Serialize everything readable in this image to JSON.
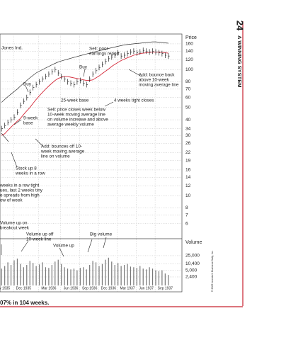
{
  "chart_data": {
    "type": "stock",
    "categories": [
      null,
      "y 1935",
      null,
      null,
      null,
      null,
      null,
      "Dec 1935",
      null,
      null,
      null,
      null,
      null,
      null,
      null,
      "Mar 1936",
      null,
      null,
      null,
      null,
      null,
      null,
      "Jun 1936",
      null,
      null,
      null,
      null,
      null,
      "Sep 1936",
      null,
      null,
      null,
      null,
      null,
      "Dec 1936",
      null,
      null,
      null,
      null,
      null,
      "Mar 1937",
      null,
      null,
      null,
      null,
      null,
      "Jun 1937",
      null,
      null,
      null,
      null,
      null,
      "Sep 1937",
      null
    ],
    "series": [
      {
        "color": "#222222",
        "values": [
          34,
          36,
          38,
          40,
          42,
          46,
          52,
          56,
          60,
          66,
          72,
          76,
          80,
          84,
          88,
          92,
          96,
          100,
          94,
          88,
          84,
          80,
          78,
          76,
          80,
          82,
          78,
          76,
          84,
          92,
          98,
          104,
          110,
          116,
          122,
          126,
          130,
          136,
          128,
          130,
          134,
          138,
          140,
          136,
          138,
          142,
          140,
          138,
          140,
          138,
          136,
          134,
          130,
          128
        ]
      },
      {
        "color": "#d42a3a",
        "values": [
          30,
          31,
          33,
          35,
          37,
          39,
          41,
          44,
          47,
          50,
          54,
          58,
          62,
          66,
          70,
          74,
          78,
          82,
          85,
          87,
          88,
          88,
          87,
          86,
          85,
          84,
          83,
          82,
          82,
          83,
          86,
          89,
          93,
          97,
          101,
          106,
          110,
          114,
          118,
          121,
          124,
          127,
          130,
          132,
          134,
          135,
          136,
          137,
          138,
          138,
          138,
          137,
          136,
          135
        ]
      },
      {
        "name": "Jones Ind.",
        "color": "#333333",
        "values": [
          55,
          58,
          61,
          64,
          67,
          70,
          74,
          78,
          82,
          86,
          90,
          94,
          97,
          100,
          103,
          106,
          109,
          112,
          115,
          117,
          119,
          121,
          123,
          125,
          127,
          129,
          131,
          133,
          135,
          137,
          139,
          141,
          143,
          145,
          147,
          149,
          151,
          153,
          155,
          157,
          158,
          159,
          160,
          161,
          162,
          163,
          164,
          165,
          166,
          166,
          165,
          164,
          163,
          162
        ]
      }
    ],
    "ylabel": "Price",
    "yscale": "log",
    "ylim": [
      4.8,
      175
    ],
    "yticks": [
      160,
      140,
      120,
      100,
      80,
      70,
      60,
      50,
      40,
      34,
      30,
      26,
      22,
      19,
      16,
      14,
      12,
      10,
      8,
      7,
      6
    ],
    "volume": {
      "label": "Volume",
      "color": "#777777",
      "scale": "log",
      "values": [
        6000,
        8000,
        12000,
        9000,
        15000,
        18000,
        10000,
        7000,
        9000,
        14000,
        11000,
        8000,
        9500,
        12000,
        7000,
        6500,
        9000,
        13000,
        16000,
        10000,
        7000,
        6000,
        5500,
        6000,
        5000,
        6500,
        7000,
        5500,
        9000,
        14000,
        12000,
        8000,
        10000,
        16000,
        20000,
        13000,
        9000,
        11000,
        8000,
        9000,
        10000,
        7500,
        7000,
        6500,
        8000,
        6000,
        5500,
        7000,
        6000,
        5000,
        4500,
        5000,
        3500,
        3000
      ],
      "ylim": [
        940,
        128000
      ],
      "yticks": [
        {
          "value": 25000,
          "label": "25,000"
        },
        {
          "value": 10400,
          "label": "10,400"
        },
        {
          "value": 5000,
          "label": "5,000"
        },
        {
          "value": 2400,
          "label": "2,400"
        }
      ]
    },
    "grid": true,
    "annotations": [
      [
        "Sell: poor",
        "earnings report"
      ],
      [
        "Buy"
      ],
      [
        "Add: bounce back",
        "above 10-week",
        "moving average line"
      ],
      [
        "Buy"
      ],
      [
        "25-week base"
      ],
      [
        "4 weeks tight closes"
      ],
      [
        "9-week",
        "base"
      ],
      [
        "Sell: price closes week below",
        "10-week moving average line",
        "on volume increase and above",
        "average weekly volume"
      ],
      [
        "Add: bounces off 10-",
        "week moving average",
        "line on volume"
      ],
      [
        "Stock up 8",
        "weeks in a row"
      ],
      [
        "weeks in a row tight",
        "ues, last 2 weeks tiny",
        "e spreads from high",
        "ow of week"
      ],
      [
        "Volume up on",
        "breakout week"
      ],
      [
        "Volume up off",
        "10-week line"
      ],
      [
        "Volume up"
      ],
      [
        "Big volume"
      ]
    ]
  },
  "page": {
    "page_number": "24",
    "running_head": "A WINNING SYSTEM",
    "copyright": "© 2009 Investor's Business Daily, Inc.",
    "caption": "07% in 104 weeks."
  }
}
